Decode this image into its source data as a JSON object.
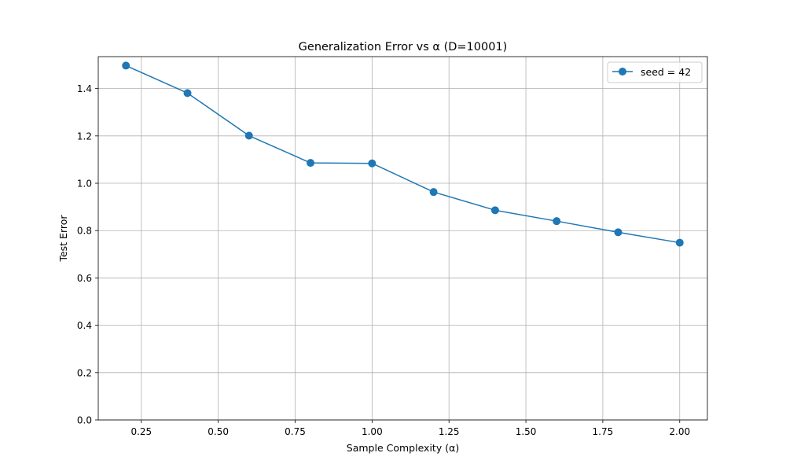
{
  "chart_data": {
    "type": "line",
    "title": "Generalization Error vs α (D=10001)",
    "xlabel": "Sample Complexity (α)",
    "ylabel": "Test Error",
    "xlim": [
      0.11,
      2.09
    ],
    "ylim": [
      0,
      1.535
    ],
    "xticks": [
      0.25,
      0.5,
      0.75,
      1.0,
      1.25,
      1.5,
      1.75,
      2.0
    ],
    "xtick_labels": [
      "0.25",
      "0.50",
      "0.75",
      "1.00",
      "1.25",
      "1.50",
      "1.75",
      "2.00"
    ],
    "yticks": [
      0.0,
      0.2,
      0.4,
      0.6,
      0.8,
      1.0,
      1.2,
      1.4
    ],
    "ytick_labels": [
      "0.0",
      "0.2",
      "0.4",
      "0.6",
      "0.8",
      "1.0",
      "1.2",
      "1.4"
    ],
    "grid": true,
    "legend_position": "top-right",
    "series": [
      {
        "name": "seed = 42",
        "color": "#1f77b4",
        "marker": "circle",
        "x": [
          0.2,
          0.4,
          0.6,
          0.8,
          1.0,
          1.2,
          1.4,
          1.6,
          1.8,
          2.0
        ],
        "y": [
          1.497,
          1.381,
          1.201,
          1.086,
          1.084,
          0.963,
          0.886,
          0.84,
          0.793,
          0.749
        ]
      }
    ]
  }
}
